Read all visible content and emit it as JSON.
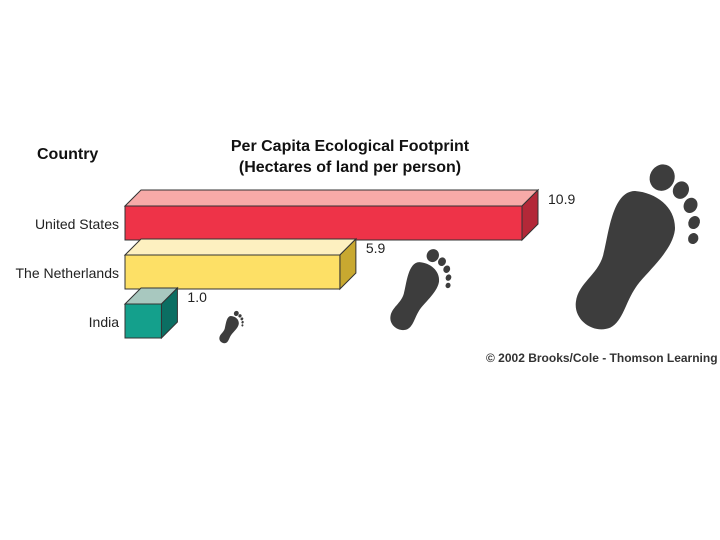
{
  "headers": {
    "country": "Country",
    "title_line1": "Per Capita Ecological Footprint",
    "title_line2": "(Hectares of land per person)"
  },
  "credit": "© 2002 Brooks/Cole - Thomson Learning",
  "chart_data": {
    "type": "bar",
    "orientation": "horizontal",
    "title": "Per Capita Ecological Footprint (Hectares of land per person)",
    "categories": [
      "United States",
      "The Netherlands",
      "India"
    ],
    "values": [
      10.9,
      5.9,
      1.0
    ],
    "value_labels": [
      "10.9",
      "5.9",
      "1.0"
    ],
    "xlim": [
      0,
      10.9
    ],
    "grid": false,
    "legend": "none",
    "colors": {
      "front": [
        "#ee3348",
        "#fde066",
        "#14a08c"
      ],
      "top": [
        "#f7aaa8",
        "#fdf0c0",
        "#a8c8bf"
      ],
      "side": [
        "#b32838",
        "#c8a830",
        "#0b6e62"
      ],
      "footprint": "#3d3d3d"
    },
    "icons": [
      "footprint-icon-large",
      "footprint-icon-medium",
      "footprint-icon-small"
    ]
  }
}
